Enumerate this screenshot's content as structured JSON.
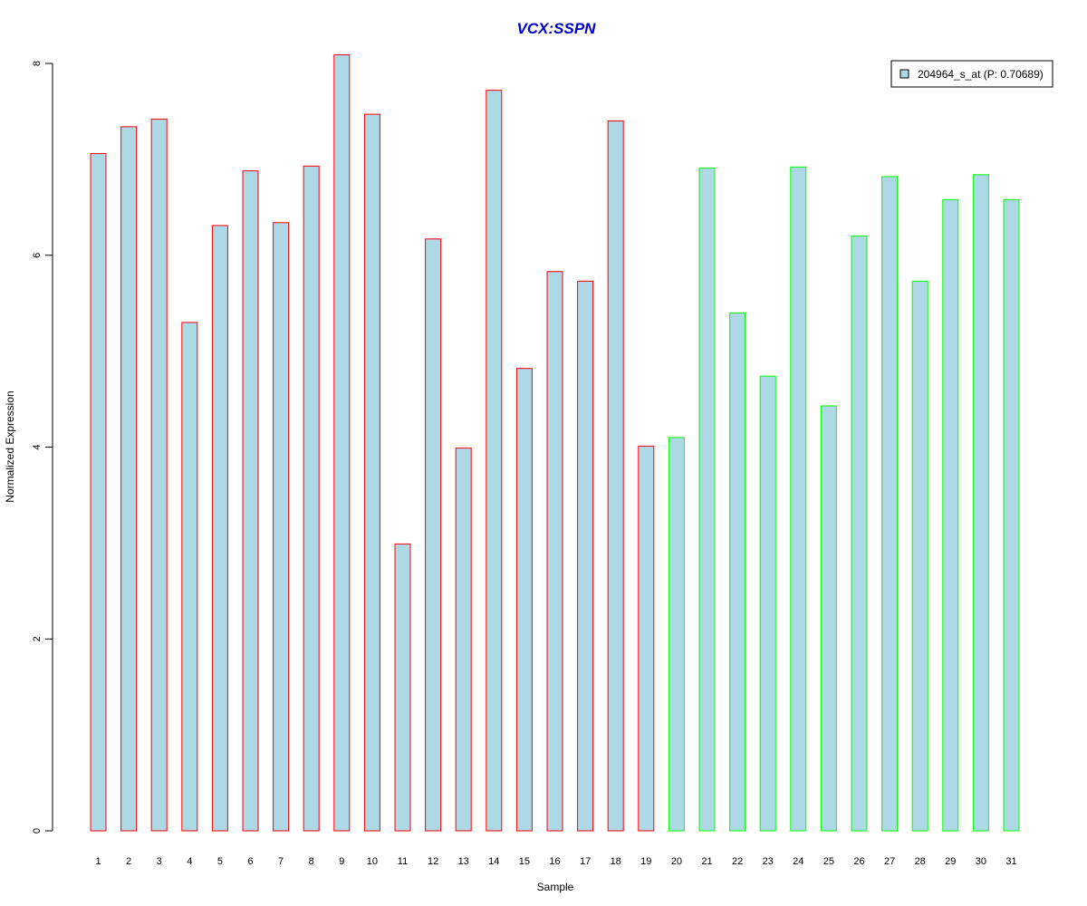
{
  "chart_data": {
    "type": "bar",
    "title": "VCX:SSPN",
    "xlabel": "Sample",
    "ylabel": "Normalized Expression",
    "ylim": [
      0,
      8
    ],
    "yticks": [
      "0",
      "2",
      "4",
      "6",
      "8"
    ],
    "categories": [
      "1",
      "2",
      "3",
      "4",
      "5",
      "6",
      "7",
      "8",
      "9",
      "10",
      "11",
      "12",
      "13",
      "14",
      "15",
      "16",
      "17",
      "18",
      "19",
      "20",
      "21",
      "22",
      "23",
      "24",
      "25",
      "26",
      "27",
      "28",
      "29",
      "30",
      "31"
    ],
    "series": [
      {
        "name": "204964_s_at (P: 0.70689)",
        "values": [
          7.06,
          7.34,
          7.42,
          5.3,
          6.31,
          6.88,
          6.34,
          6.93,
          8.09,
          7.47,
          2.99,
          6.17,
          3.99,
          7.72,
          4.82,
          5.83,
          5.73,
          7.4,
          4.01,
          4.1,
          6.91,
          5.4,
          4.74,
          6.92,
          4.43,
          6.2,
          6.82,
          5.73,
          6.58,
          6.84,
          6.58
        ]
      }
    ],
    "group_size_first": 19,
    "colors": {
      "bar_fill": "#add8e6",
      "group1_border": "#ff0000",
      "group2_border": "#00ff00",
      "title": "#0000cd"
    },
    "legend_position": "top-right",
    "grid": false
  }
}
